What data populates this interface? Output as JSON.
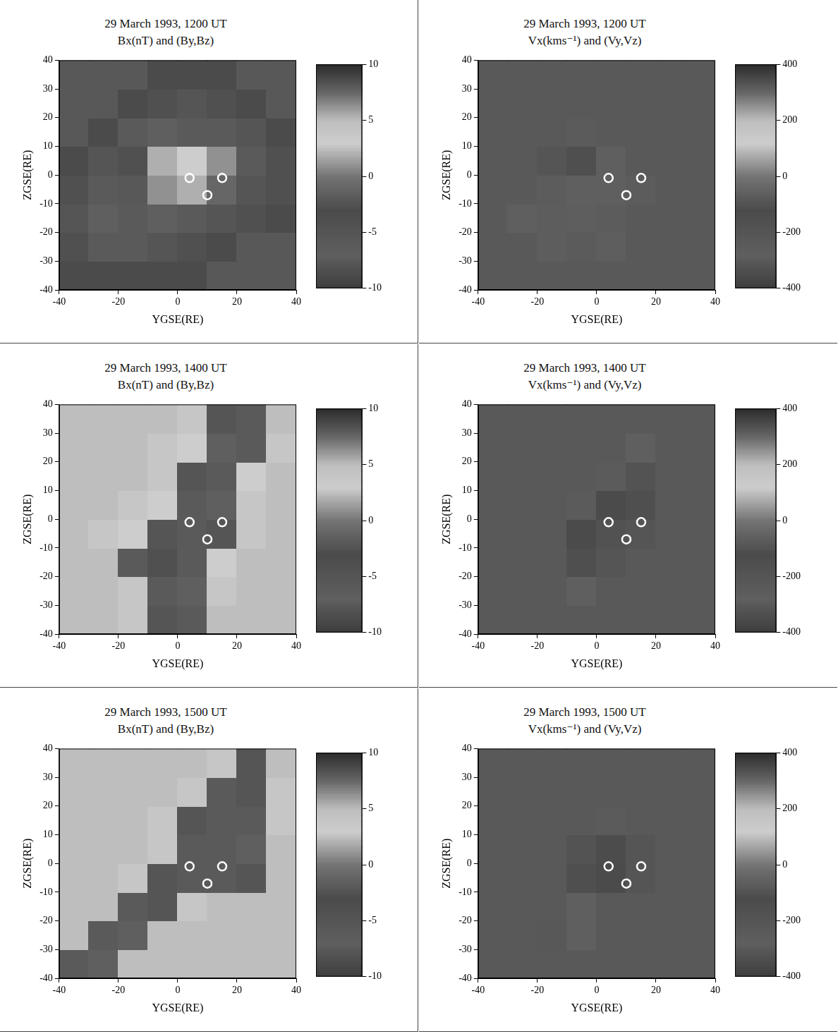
{
  "chart_data": [
    {
      "type": "heatmap",
      "title": "29 March 1993, 1200 UT",
      "subtitle": "Bx(nT) and (By,Bz)",
      "x_label": "YGSE(RE)",
      "y_label": "ZGSE(RE)",
      "xlim": [
        -40,
        40
      ],
      "ylim": [
        -40,
        40
      ],
      "xticks": [
        -40,
        -20,
        0,
        20,
        40
      ],
      "yticks": [
        -40,
        -30,
        -20,
        -10,
        0,
        10,
        20,
        30,
        40
      ],
      "grid": false,
      "x": [
        -35,
        -25,
        -15,
        -5,
        5,
        15,
        25,
        35
      ],
      "y": [
        -35,
        -25,
        -15,
        -5,
        5,
        15,
        25,
        35
      ],
      "cells": [
        [
          -3,
          -3,
          -3,
          -3,
          -3,
          -2,
          -2,
          -2
        ],
        [
          -4,
          -6,
          -6,
          -5,
          -4,
          -3,
          -2,
          -2
        ],
        [
          -5,
          -7,
          -6,
          -7,
          -6,
          -5,
          -4,
          -3
        ],
        [
          -4,
          -6,
          -2,
          1,
          2,
          -1,
          -5,
          -4
        ],
        [
          -3,
          -5,
          -4,
          2,
          3,
          1,
          -6,
          -4
        ],
        [
          -2,
          -3,
          -6,
          -7,
          -6,
          -6,
          -5,
          -3
        ],
        [
          -2,
          -2,
          -3,
          -4,
          -5,
          -4,
          -3,
          -2
        ],
        [
          -2,
          -2,
          -2,
          -3,
          -3,
          -3,
          -2,
          -2
        ]
      ],
      "colorbar": {
        "range": [
          -10,
          10
        ],
        "ticks": [
          -10,
          -5,
          0,
          5,
          10
        ]
      },
      "points": {
        "x": [
          4,
          15,
          10
        ],
        "y": [
          -1,
          -1,
          -7
        ]
      },
      "marker": "circle"
    },
    {
      "type": "heatmap",
      "title": "29 March 1993, 1200 UT",
      "subtitle": "Vx(kms⁻¹) and (Vy,Vz)",
      "x_label": "YGSE(RE)",
      "y_label": "ZGSE(RE)",
      "xlim": [
        -40,
        40
      ],
      "ylim": [
        -40,
        40
      ],
      "xticks": [
        -40,
        -20,
        0,
        20,
        40
      ],
      "yticks": [
        -40,
        -30,
        -20,
        -10,
        0,
        10,
        20,
        30,
        40
      ],
      "grid": false,
      "x": [
        -35,
        -25,
        -15,
        -5,
        5,
        15,
        25,
        35
      ],
      "y": [
        -35,
        -25,
        -15,
        -5,
        5,
        15,
        25,
        35
      ],
      "cells": [
        [
          -300,
          -300,
          -300,
          -300,
          -300,
          -300,
          -300,
          -300
        ],
        [
          -300,
          -300,
          -260,
          -250,
          -270,
          -300,
          -300,
          -300
        ],
        [
          -300,
          -280,
          -260,
          -270,
          -290,
          -300,
          -300,
          -300
        ],
        [
          -300,
          -300,
          -290,
          -280,
          -280,
          -290,
          -300,
          -300
        ],
        [
          -300,
          -300,
          -200,
          -150,
          -280,
          -300,
          -300,
          -300
        ],
        [
          -300,
          -300,
          -300,
          -250,
          -300,
          -300,
          -300,
          -300
        ],
        [
          -300,
          -300,
          -300,
          -300,
          -300,
          -300,
          -300,
          -300
        ],
        [
          -300,
          -300,
          -300,
          -300,
          -300,
          -300,
          -300,
          -300
        ]
      ],
      "colorbar": {
        "range": [
          -400,
          400
        ],
        "ticks": [
          -400,
          -200,
          0,
          200,
          400
        ]
      },
      "points": {
        "x": [
          4,
          15,
          10
        ],
        "y": [
          -1,
          -1,
          -7
        ]
      },
      "marker": "circle"
    },
    {
      "type": "heatmap",
      "title": "29 March 1993, 1400 UT",
      "subtitle": "Bx(nT) and (By,Bz)",
      "x_label": "YGSE(RE)",
      "y_label": "ZGSE(RE)",
      "xlim": [
        -40,
        40
      ],
      "ylim": [
        -40,
        40
      ],
      "xticks": [
        -40,
        -20,
        0,
        20,
        40
      ],
      "yticks": [
        -40,
        -30,
        -20,
        -10,
        0,
        10,
        20,
        30,
        40
      ],
      "grid": false,
      "x": [
        -35,
        -25,
        -15,
        -5,
        5,
        15,
        25,
        35
      ],
      "y": [
        -35,
        -25,
        -15,
        -5,
        5,
        15,
        25,
        35
      ],
      "cells": [
        [
          5,
          5,
          4,
          -5,
          -6,
          5,
          5,
          5
        ],
        [
          5,
          5,
          4,
          -6,
          -7,
          4,
          5,
          5
        ],
        [
          5,
          5,
          -6,
          -4,
          -6,
          3,
          5,
          5
        ],
        [
          5,
          4,
          3,
          -5,
          -6,
          -5,
          4,
          5
        ],
        [
          5,
          5,
          4,
          3,
          -6,
          -7,
          4,
          5
        ],
        [
          5,
          5,
          5,
          4,
          -5,
          -6,
          3,
          5
        ],
        [
          5,
          5,
          5,
          4,
          3,
          -7,
          -6,
          4
        ],
        [
          5,
          5,
          5,
          5,
          4,
          -5,
          -6,
          5
        ]
      ],
      "colorbar": {
        "range": [
          -10,
          10
        ],
        "ticks": [
          -10,
          -5,
          0,
          5,
          10
        ]
      },
      "points": {
        "x": [
          4,
          15,
          10
        ],
        "y": [
          -1,
          -1,
          -7
        ]
      },
      "marker": "circle"
    },
    {
      "type": "heatmap",
      "title": "29 March 1993, 1400 UT",
      "subtitle": "Vx(kms⁻¹) and (Vy,Vz)",
      "x_label": "YGSE(RE)",
      "y_label": "ZGSE(RE)",
      "xlim": [
        -40,
        40
      ],
      "ylim": [
        -40,
        40
      ],
      "xticks": [
        -40,
        -20,
        0,
        20,
        40
      ],
      "yticks": [
        -40,
        -30,
        -20,
        -10,
        0,
        10,
        20,
        30,
        40
      ],
      "grid": false,
      "x": [
        -35,
        -25,
        -15,
        -5,
        5,
        15,
        25,
        35
      ],
      "y": [
        -35,
        -25,
        -15,
        -5,
        5,
        15,
        25,
        35
      ],
      "cells": [
        [
          -300,
          -300,
          -300,
          -300,
          -300,
          -300,
          -300,
          -300
        ],
        [
          -300,
          -300,
          -300,
          -280,
          -300,
          -300,
          -300,
          -300
        ],
        [
          -300,
          -300,
          -300,
          -150,
          -200,
          -300,
          -300,
          -300
        ],
        [
          -300,
          -300,
          -300,
          -120,
          -100,
          -200,
          -300,
          -300
        ],
        [
          -300,
          -300,
          -300,
          -250,
          -120,
          -150,
          -300,
          -300
        ],
        [
          -300,
          -300,
          -300,
          -300,
          -250,
          -180,
          -300,
          -300
        ],
        [
          -300,
          -300,
          -300,
          -300,
          -300,
          -280,
          -300,
          -300
        ],
        [
          -300,
          -300,
          -300,
          -300,
          -300,
          -300,
          -300,
          -300
        ]
      ],
      "colorbar": {
        "range": [
          -400,
          400
        ],
        "ticks": [
          -400,
          -200,
          0,
          200,
          400
        ]
      },
      "points": {
        "x": [
          4,
          15,
          10
        ],
        "y": [
          -1,
          -1,
          -7
        ]
      },
      "marker": "circle"
    },
    {
      "type": "heatmap",
      "title": "29 March 1993, 1500 UT",
      "subtitle": "Bx(nT) and (By,Bz)",
      "x_label": "YGSE(RE)",
      "y_label": "ZGSE(RE)",
      "xlim": [
        -40,
        40
      ],
      "ylim": [
        -40,
        40
      ],
      "xticks": [
        -40,
        -20,
        0,
        20,
        40
      ],
      "yticks": [
        -40,
        -30,
        -20,
        -10,
        0,
        10,
        20,
        30,
        40
      ],
      "grid": false,
      "x": [
        -35,
        -25,
        -15,
        -5,
        5,
        15,
        25,
        35
      ],
      "y": [
        -35,
        -25,
        -15,
        -5,
        5,
        15,
        25,
        35
      ],
      "cells": [
        [
          -6,
          -7,
          5,
          5,
          5,
          5,
          5,
          5
        ],
        [
          5,
          -6,
          -7,
          5,
          5,
          5,
          5,
          5
        ],
        [
          5,
          5,
          -6,
          -5,
          4,
          5,
          5,
          5
        ],
        [
          5,
          5,
          4,
          -5,
          -6,
          -6,
          -5,
          5
        ],
        [
          5,
          5,
          5,
          4,
          -6,
          -6,
          -7,
          5
        ],
        [
          5,
          5,
          5,
          4,
          -5,
          -6,
          -6,
          4
        ],
        [
          5,
          5,
          5,
          5,
          4,
          -6,
          -5,
          4
        ],
        [
          5,
          5,
          5,
          5,
          5,
          4,
          -5,
          5
        ]
      ],
      "colorbar": {
        "range": [
          -10,
          10
        ],
        "ticks": [
          -10,
          -5,
          0,
          5,
          10
        ]
      },
      "points": {
        "x": [
          4,
          15,
          10
        ],
        "y": [
          -1,
          -1,
          -7
        ]
      },
      "marker": "circle"
    },
    {
      "type": "heatmap",
      "title": "29 March 1993, 1500 UT",
      "subtitle": "Vx(kms⁻¹) and (Vy,Vz)",
      "x_label": "YGSE(RE)",
      "y_label": "ZGSE(RE)",
      "xlim": [
        -40,
        40
      ],
      "ylim": [
        -40,
        40
      ],
      "xticks": [
        -40,
        -20,
        0,
        20,
        40
      ],
      "yticks": [
        -40,
        -30,
        -20,
        -10,
        0,
        10,
        20,
        30,
        40
      ],
      "grid": false,
      "x": [
        -35,
        -25,
        -15,
        -5,
        5,
        15,
        25,
        35
      ],
      "y": [
        -35,
        -25,
        -15,
        -5,
        5,
        15,
        25,
        35
      ],
      "cells": [
        [
          -300,
          -300,
          -300,
          -300,
          -300,
          -300,
          -300,
          -300
        ],
        [
          -300,
          -300,
          -220,
          -280,
          -300,
          -300,
          -300,
          -300
        ],
        [
          -300,
          -300,
          -300,
          -280,
          -300,
          -300,
          -300,
          -300
        ],
        [
          -300,
          -300,
          -300,
          -150,
          -120,
          -200,
          -300,
          -300
        ],
        [
          -300,
          -300,
          -300,
          -180,
          -130,
          -200,
          -300,
          -300
        ],
        [
          -300,
          -300,
          -300,
          -300,
          -250,
          -300,
          -300,
          -300
        ],
        [
          -300,
          -300,
          -300,
          -300,
          -300,
          -300,
          -300,
          -300
        ],
        [
          -300,
          -300,
          -300,
          -300,
          -300,
          -300,
          -300,
          -300
        ]
      ],
      "colorbar": {
        "range": [
          -400,
          400
        ],
        "ticks": [
          -400,
          -200,
          0,
          200,
          400
        ]
      },
      "points": {
        "x": [
          4,
          15,
          10
        ],
        "y": [
          -1,
          -1,
          -7
        ]
      },
      "marker": "circle"
    }
  ]
}
